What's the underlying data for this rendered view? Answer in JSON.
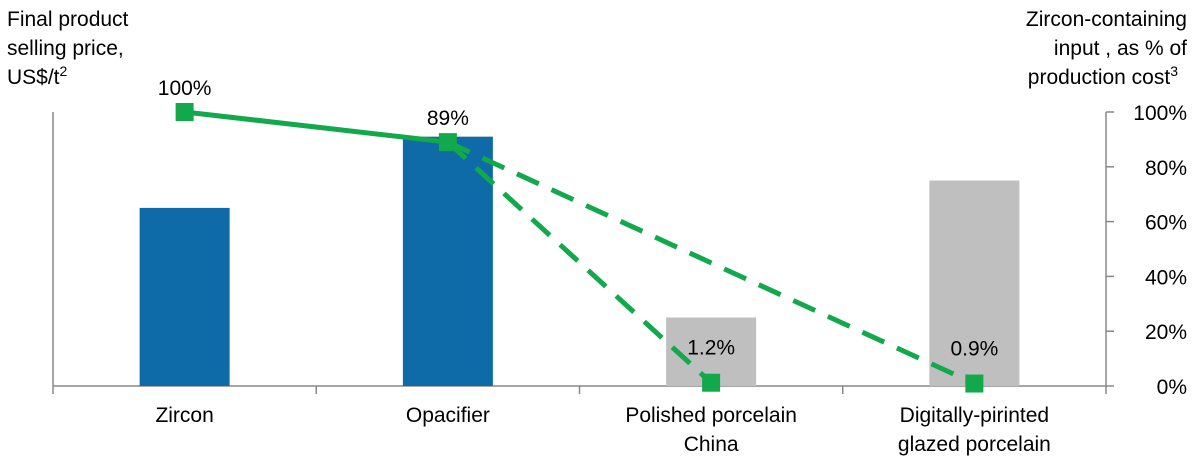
{
  "chart_data": {
    "type": "bar",
    "left_axis_title": [
      "Final product",
      "selling price,",
      "US$/t"
    ],
    "left_axis_title_sup": "2",
    "right_axis_title": [
      "Zircon-containing",
      "input , as % of",
      "production cost"
    ],
    "right_axis_title_sup": "3",
    "categories": [
      [
        "Zircon"
      ],
      [
        "Opacifier"
      ],
      [
        "Polished porcelain",
        "China"
      ],
      [
        "Digitally-pirinted",
        "glazed porcelain"
      ]
    ],
    "bars": {
      "values": [
        65,
        91,
        25,
        75
      ],
      "colors": [
        "#0F6BA8",
        "#0F6BA8",
        "#BFBFBF",
        "#BFBFBF"
      ]
    },
    "line": {
      "values": [
        100,
        89,
        1.2,
        0.9
      ],
      "labels": [
        "100%",
        "89%",
        "1.2%",
        "0.9%"
      ],
      "color": "#12A84C"
    },
    "right_axis": {
      "ylim": [
        0,
        100
      ],
      "ticks": [
        "0%",
        "20%",
        "40%",
        "60%",
        "80%",
        "100%"
      ]
    },
    "grid": false
  }
}
